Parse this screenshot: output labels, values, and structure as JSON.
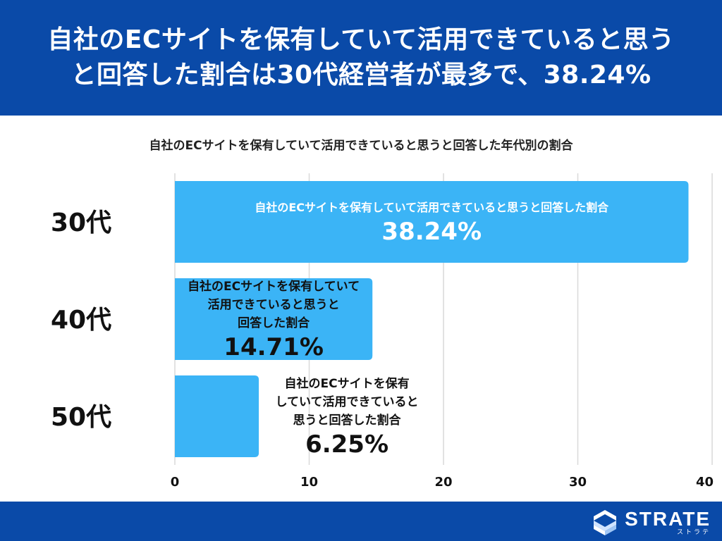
{
  "header": {
    "title_line1": "自社のECサイトを保有していて活用できていると思う",
    "title_line2": "と回答した割合は30代経営者が最多で、38.24%"
  },
  "chart_data": {
    "type": "bar",
    "orientation": "horizontal",
    "title": "自社のECサイトを保有していて活用できていると思うと回答した年代別の割合",
    "categories": [
      "30代",
      "40代",
      "50代"
    ],
    "values": [
      38.24,
      14.71,
      6.25
    ],
    "value_labels": [
      "38.24%",
      "14.71%",
      "6.25%"
    ],
    "annotation_lines": [
      [
        "自社のECサイトを保有していて活用できていると思うと回答した割合"
      ],
      [
        "自社のECサイトを保有していて",
        "活用できていると思うと",
        "回答した割合"
      ],
      [
        "自社のECサイトを保有",
        "していて活用できていると",
        "思うと回答した割合"
      ]
    ],
    "xlim": [
      0,
      40
    ],
    "xticks": [
      0,
      10,
      20,
      30,
      40
    ],
    "xlabel": "",
    "ylabel": "",
    "grid": true,
    "bar_color": "#3bb4f6"
  },
  "footer": {
    "logo_text": "STRATE",
    "logo_subtext": "ストラテ"
  },
  "colors": {
    "header_bg": "#0a4aa8",
    "footer_bg": "#0a4aa8",
    "bar": "#3bb4f6",
    "grid": "#d9d9d9"
  }
}
